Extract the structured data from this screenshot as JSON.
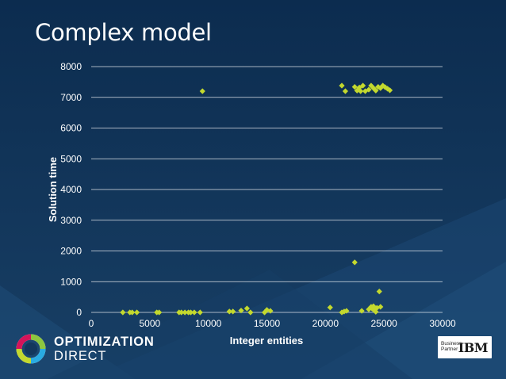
{
  "slide": {
    "title": "Complex model"
  },
  "logo": {
    "line1": "OPTIMIZATION",
    "line2": "DIRECT"
  },
  "partner_badge": {
    "line1": "Business",
    "line2": "Partner",
    "brand": "IBM"
  },
  "colors": {
    "background": "#13375c",
    "marker": "#c3d82e",
    "gridline": "#ffffff"
  },
  "chart_data": {
    "type": "scatter",
    "title": "",
    "xlabel": "Integer entities",
    "ylabel": "Solution time",
    "xlim": [
      0,
      30000
    ],
    "ylim": [
      0,
      8000
    ],
    "xticks": [
      "0",
      "5000",
      "10000",
      "15000",
      "20000",
      "25000",
      "30000"
    ],
    "yticks": [
      "0",
      "1000",
      "2000",
      "3000",
      "4000",
      "5000",
      "6000",
      "7000",
      "8000"
    ],
    "grid": "horizontal",
    "legend": "none",
    "marker": "diamond",
    "series": [
      {
        "points": [
          [
            2700,
            0
          ],
          [
            3300,
            0
          ],
          [
            3500,
            0
          ],
          [
            3900,
            0
          ],
          [
            5600,
            0
          ],
          [
            5800,
            0
          ],
          [
            7500,
            0
          ],
          [
            7700,
            0
          ],
          [
            8000,
            0
          ],
          [
            8300,
            0
          ],
          [
            8500,
            0
          ],
          [
            8800,
            0
          ],
          [
            9300,
            0
          ],
          [
            9500,
            7200
          ],
          [
            11800,
            30
          ],
          [
            12100,
            30
          ],
          [
            12800,
            60
          ],
          [
            13300,
            130
          ],
          [
            13600,
            0
          ],
          [
            14800,
            0
          ],
          [
            15000,
            80
          ],
          [
            15300,
            50
          ],
          [
            20400,
            160
          ],
          [
            21400,
            0
          ],
          [
            21600,
            30
          ],
          [
            21800,
            50
          ],
          [
            21400,
            7380
          ],
          [
            21700,
            7200
          ],
          [
            22500,
            1630
          ],
          [
            22500,
            7340
          ],
          [
            22700,
            7220
          ],
          [
            22900,
            7320
          ],
          [
            23000,
            7200
          ],
          [
            23200,
            7380
          ],
          [
            23400,
            7200
          ],
          [
            23700,
            7250
          ],
          [
            23900,
            7380
          ],
          [
            24100,
            7300
          ],
          [
            24300,
            7220
          ],
          [
            24500,
            7340
          ],
          [
            24700,
            7300
          ],
          [
            24900,
            7380
          ],
          [
            25100,
            7330
          ],
          [
            25300,
            7280
          ],
          [
            25500,
            7230
          ],
          [
            23100,
            50
          ],
          [
            23700,
            100
          ],
          [
            23900,
            180
          ],
          [
            24000,
            120
          ],
          [
            24100,
            200
          ],
          [
            24200,
            60
          ],
          [
            24300,
            20
          ],
          [
            24400,
            150
          ],
          [
            24600,
            680
          ],
          [
            24700,
            180
          ]
        ]
      }
    ]
  }
}
